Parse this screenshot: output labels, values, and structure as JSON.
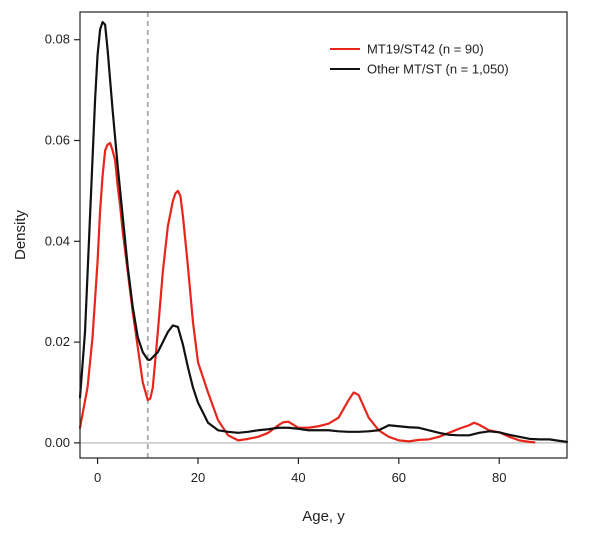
{
  "chart_data": {
    "type": "line",
    "title": "",
    "xlabel": "Age, y",
    "ylabel": "Density",
    "xlim": [
      -3.5,
      93.5
    ],
    "ylim": [
      -0.003,
      0.0855
    ],
    "x_ticks": [
      0,
      20,
      40,
      60,
      80
    ],
    "x_tick_labels": [
      "0",
      "20",
      "40",
      "60",
      "80"
    ],
    "y_ticks": [
      0.0,
      0.02,
      0.04,
      0.06,
      0.08
    ],
    "y_tick_labels": [
      "0.00",
      "0.02",
      "0.04",
      "0.06",
      "0.08"
    ],
    "grid": false,
    "legend_position": "top-right",
    "reference_lines": [
      {
        "orientation": "vertical",
        "x": 10,
        "style": "dashed",
        "color": "#aaaaaa"
      },
      {
        "orientation": "horizontal",
        "y": 0,
        "style": "solid",
        "color": "#bbbbbb"
      }
    ],
    "series": [
      {
        "name": "MT19/ST42 (n = 90)",
        "color": "#e8251b",
        "x": [
          -3.5,
          -2,
          -1,
          0,
          0.5,
          1,
          1.5,
          2,
          2.5,
          3,
          3.5,
          4,
          4.5,
          5,
          6,
          7,
          8,
          9,
          10,
          10.5,
          11,
          12,
          13,
          14,
          15,
          15.5,
          16,
          16.5,
          17,
          18,
          19,
          20,
          22,
          24,
          26,
          28,
          30,
          32,
          34,
          36,
          37,
          38,
          40,
          42,
          44,
          46,
          48,
          50,
          51,
          52,
          54,
          56,
          58,
          60,
          62,
          64,
          66,
          68,
          70,
          72,
          74,
          75,
          76,
          78,
          80,
          82,
          84,
          86,
          87
        ],
        "y": [
          0.003,
          0.011,
          0.021,
          0.036,
          0.046,
          0.053,
          0.058,
          0.0592,
          0.0595,
          0.058,
          0.056,
          0.051,
          0.047,
          0.042,
          0.034,
          0.026,
          0.019,
          0.012,
          0.0085,
          0.0088,
          0.011,
          0.022,
          0.034,
          0.043,
          0.048,
          0.0495,
          0.05,
          0.049,
          0.045,
          0.035,
          0.024,
          0.016,
          0.01,
          0.0045,
          0.0015,
          0.0005,
          0.0008,
          0.0012,
          0.002,
          0.0035,
          0.0041,
          0.0042,
          0.003,
          0.003,
          0.0033,
          0.0038,
          0.005,
          0.0085,
          0.01,
          0.0095,
          0.005,
          0.0025,
          0.0012,
          0.0005,
          0.0003,
          0.0006,
          0.0007,
          0.0012,
          0.002,
          0.0028,
          0.0035,
          0.004,
          0.0036,
          0.0025,
          0.0021,
          0.0012,
          0.0005,
          0.0002,
          0.0001
        ]
      },
      {
        "name": "Other MT/ST (n = 1,050)",
        "color": "#111111",
        "x": [
          -3.5,
          -2.5,
          -1.5,
          -0.5,
          0,
          0.5,
          1,
          1.5,
          2,
          2.5,
          3,
          4,
          5,
          6,
          7,
          8,
          9,
          10,
          10.5,
          11,
          12,
          13,
          14,
          15,
          16,
          17,
          18,
          19,
          20,
          21,
          22,
          24,
          26,
          28,
          30,
          32,
          34,
          36,
          38,
          40,
          42,
          44,
          46,
          48,
          50,
          52,
          54,
          56,
          58,
          60,
          62,
          64,
          66,
          68,
          70,
          72,
          74,
          76,
          78,
          80,
          82,
          84,
          86,
          88,
          90,
          92,
          93.5
        ],
        "y": [
          0.009,
          0.022,
          0.045,
          0.068,
          0.077,
          0.082,
          0.0835,
          0.083,
          0.078,
          0.072,
          0.066,
          0.055,
          0.045,
          0.035,
          0.027,
          0.021,
          0.018,
          0.0165,
          0.0165,
          0.017,
          0.018,
          0.02,
          0.022,
          0.0233,
          0.023,
          0.0195,
          0.015,
          0.011,
          0.008,
          0.006,
          0.004,
          0.0025,
          0.0022,
          0.002,
          0.0022,
          0.0025,
          0.0027,
          0.003,
          0.003,
          0.0028,
          0.0025,
          0.0025,
          0.0025,
          0.0023,
          0.0022,
          0.0022,
          0.0023,
          0.0025,
          0.0035,
          0.0033,
          0.0031,
          0.003,
          0.0025,
          0.002,
          0.0016,
          0.0015,
          0.0015,
          0.002,
          0.0023,
          0.0021,
          0.0016,
          0.0012,
          0.0008,
          0.0007,
          0.0007,
          0.0004,
          0.0002
        ]
      }
    ]
  }
}
